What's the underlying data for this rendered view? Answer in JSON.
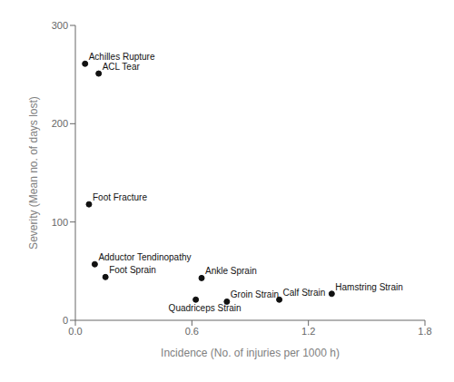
{
  "chart_data": {
    "type": "scatter",
    "xlabel": "Incidence (No. of injuries per 1000 h)",
    "ylabel": "Severity (Mean no. of days lost)",
    "labels": [
      "Achilles Rupture",
      "ACL Tear",
      "Foot Fracture",
      "Adductor Tendinopathy",
      "Foot Sprain",
      "Ankle Sprain",
      "Quadriceps Strain",
      "Groin Strain",
      "Calf Strain",
      "Hamstring Strain"
    ],
    "x": [
      0.05,
      0.12,
      0.07,
      0.1,
      0.155,
      0.65,
      0.62,
      0.78,
      1.05,
      1.32
    ],
    "values": [
      261,
      251,
      118,
      57,
      44,
      43,
      21,
      19,
      21,
      27
    ],
    "color": "#111111",
    "xlim": [
      0.0,
      1.8
    ],
    "ylim": [
      0,
      300
    ],
    "xticks": [
      {
        "value": 0.0,
        "label": "0.0"
      },
      0.6,
      1.2,
      1.8
    ],
    "yticks": [
      0,
      100,
      200,
      300
    ],
    "grid": false
  }
}
